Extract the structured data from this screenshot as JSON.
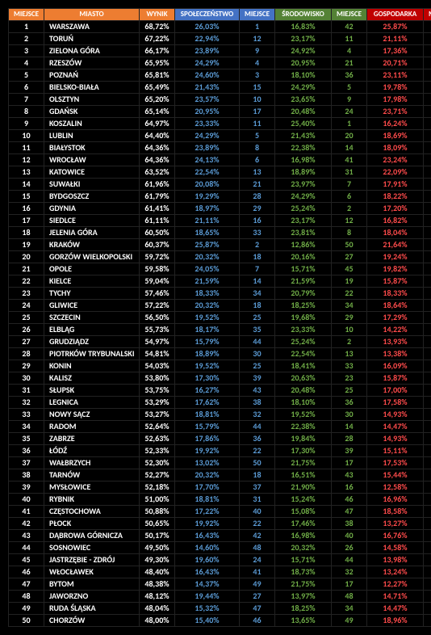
{
  "headers": {
    "rank": "MIEJSCE",
    "city": "MIASTO",
    "result": "WYNIK",
    "society": "SPOŁECZEŃSTWO",
    "soc_rank": "MIEJSCE",
    "environment": "ŚRODOWISKO",
    "env_rank": "MIEJSCE",
    "economy": "GOSPODARKA",
    "eco_rank": "MIEJSCE"
  },
  "colors": {
    "header_orange": "#ed7d31",
    "header_blue": "#4472c4",
    "header_green": "#548235",
    "header_red": "#c00000",
    "text_white": "#ffffff",
    "text_blue": "#5b9bd5",
    "text_green": "#70ad47",
    "text_red": "#ff4b4b",
    "background": "#000000"
  },
  "rows": [
    {
      "rank": "1",
      "city": "WARSZAWA",
      "result": "68,72%",
      "soc": "26,03%",
      "socr": "1",
      "env": "16,83%",
      "envr": "42",
      "eco": "25,87%",
      "ecor": "1"
    },
    {
      "rank": "2",
      "city": "TORUŃ",
      "result": "67,22%",
      "soc": "22,94%",
      "socr": "12",
      "env": "23,17%",
      "envr": "11",
      "eco": "21,11%",
      "ecor": "7"
    },
    {
      "rank": "3",
      "city": "ZIELONA GÓRA",
      "result": "66,17%",
      "soc": "23,89%",
      "socr": "9",
      "env": "24,92%",
      "envr": "4",
      "eco": "17,36%",
      "ecor": "34"
    },
    {
      "rank": "4",
      "city": "RZESZÓW",
      "result": "65,95%",
      "soc": "24,29%",
      "socr": "4",
      "env": "20,95%",
      "envr": "21",
      "eco": "20,71%",
      "ecor": "8"
    },
    {
      "rank": "5",
      "city": "POZNAŃ",
      "result": "65,81%",
      "soc": "24,60%",
      "socr": "3",
      "env": "18,10%",
      "envr": "36",
      "eco": "23,11%",
      "ecor": "4"
    },
    {
      "rank": "6",
      "city": "BIELSKO-BIAŁA",
      "result": "65,49%",
      "soc": "21,43%",
      "socr": "15",
      "env": "24,29%",
      "envr": "5",
      "eco": "19,78%",
      "ecor": "10"
    },
    {
      "rank": "7",
      "city": "OLSZTYN",
      "result": "65,20%",
      "soc": "23,57%",
      "socr": "10",
      "env": "23,65%",
      "envr": "9",
      "eco": "17,98%",
      "ecor": "20"
    },
    {
      "rank": "8",
      "city": "GDAŃSK",
      "result": "65,14%",
      "soc": "20,95%",
      "socr": "17",
      "env": "20,48%",
      "envr": "24",
      "eco": "23,71%",
      "ecor": "2"
    },
    {
      "rank": "9",
      "city": "KOSZALIN",
      "result": "64,97%",
      "soc": "23,33%",
      "socr": "11",
      "env": "25,40%",
      "envr": "1",
      "eco": "16,24%",
      "ecor": "31"
    },
    {
      "rank": "10",
      "city": "LUBLIN",
      "result": "64,40%",
      "soc": "24,29%",
      "socr": "5",
      "env": "21,43%",
      "envr": "20",
      "eco": "18,69%",
      "ecor": "13"
    },
    {
      "rank": "11",
      "city": "BIAŁYSTOK",
      "result": "64,36%",
      "soc": "23,89%",
      "socr": "8",
      "env": "22,38%",
      "envr": "14",
      "eco": "18,09%",
      "ecor": "18"
    },
    {
      "rank": "12",
      "city": "WROCŁAW",
      "result": "64,36%",
      "soc": "24,13%",
      "socr": "6",
      "env": "16,98%",
      "envr": "41",
      "eco": "23,24%",
      "ecor": "3"
    },
    {
      "rank": "13",
      "city": "KATOWICE",
      "result": "63,52%",
      "soc": "22,54%",
      "socr": "13",
      "env": "18,89%",
      "envr": "31",
      "eco": "22,09%",
      "ecor": "5"
    },
    {
      "rank": "14",
      "city": "SUWAŁKI",
      "result": "61,96%",
      "soc": "20,08%",
      "socr": "21",
      "env": "23,97%",
      "envr": "7",
      "eco": "17,91%",
      "ecor": "21"
    },
    {
      "rank": "15",
      "city": "BYDGOSZCZ",
      "result": "61,79%",
      "soc": "19,29%",
      "socr": "28",
      "env": "24,29%",
      "envr": "6",
      "eco": "18,22%",
      "ecor": "17"
    },
    {
      "rank": "16",
      "city": "GDYNIA",
      "result": "61,41%",
      "soc": "18,97%",
      "socr": "29",
      "env": "25,24%",
      "envr": "2",
      "eco": "17,20%",
      "ecor": "26"
    },
    {
      "rank": "17",
      "city": "SIEDLCE",
      "result": "61,11%",
      "soc": "21,11%",
      "socr": "16",
      "env": "23,17%",
      "envr": "12",
      "eco": "16,82%",
      "ecor": "29"
    },
    {
      "rank": "18",
      "city": "JELENIA GÓRA",
      "result": "60,50%",
      "soc": "18,65%",
      "socr": "33",
      "env": "23,81%",
      "envr": "8",
      "eco": "18,04%",
      "ecor": "19"
    },
    {
      "rank": "19",
      "city": "KRAKÓW",
      "result": "60,37%",
      "soc": "25,87%",
      "socr": "2",
      "env": "12,86%",
      "envr": "50",
      "eco": "21,64%",
      "ecor": "6"
    },
    {
      "rank": "20",
      "city": "GORZÓW WIELKOPOLSKI",
      "result": "59,72%",
      "soc": "20,32%",
      "socr": "18",
      "env": "20,16%",
      "envr": "27",
      "eco": "19,24%",
      "ecor": "11"
    },
    {
      "rank": "21",
      "city": "OPOLE",
      "result": "59,58%",
      "soc": "24,05%",
      "socr": "7",
      "env": "15,71%",
      "envr": "45",
      "eco": "19,82%",
      "ecor": "9"
    },
    {
      "rank": "22",
      "city": "KIELCE",
      "result": "59,04%",
      "soc": "21,59%",
      "socr": "14",
      "env": "21,59%",
      "envr": "19",
      "eco": "15,87%",
      "ecor": "33"
    },
    {
      "rank": "23",
      "city": "TYCHY",
      "result": "57,46%",
      "soc": "18,33%",
      "socr": "34",
      "env": "20,79%",
      "envr": "22",
      "eco": "18,33%",
      "ecor": "16"
    },
    {
      "rank": "24",
      "city": "GLIWICE",
      "result": "57,22%",
      "soc": "20,32%",
      "socr": "18",
      "env": "18,25%",
      "envr": "34",
      "eco": "18,64%",
      "ecor": "14"
    },
    {
      "rank": "25",
      "city": "SZCZECIN",
      "result": "56,50%",
      "soc": "19,52%",
      "socr": "25",
      "env": "19,68%",
      "envr": "29",
      "eco": "17,29%",
      "ecor": "25"
    },
    {
      "rank": "26",
      "city": "ELBLĄG",
      "result": "55,73%",
      "soc": "18,17%",
      "socr": "35",
      "env": "23,33%",
      "envr": "10",
      "eco": "14,22%",
      "ecor": "43"
    },
    {
      "rank": "27",
      "city": "GRUDZIĄDZ",
      "result": "54,97%",
      "soc": "15,79%",
      "socr": "44",
      "env": "25,24%",
      "envr": "2",
      "eco": "13,93%",
      "ecor": "45"
    },
    {
      "rank": "28",
      "city": "PIOTRKÓW TRYBUNALSKI",
      "result": "54,81%",
      "soc": "18,89%",
      "socr": "30",
      "env": "22,54%",
      "envr": "13",
      "eco": "13,38%",
      "ecor": "46"
    },
    {
      "rank": "29",
      "city": "KONIN",
      "result": "54,03%",
      "soc": "19,52%",
      "socr": "25",
      "env": "18,41%",
      "envr": "33",
      "eco": "16,09%",
      "ecor": "32"
    },
    {
      "rank": "30",
      "city": "KALISZ",
      "result": "53,80%",
      "soc": "17,30%",
      "socr": "39",
      "env": "20,63%",
      "envr": "23",
      "eco": "15,87%",
      "ecor": "33"
    },
    {
      "rank": "31",
      "city": "SŁUPSK",
      "result": "53,75%",
      "soc": "16,27%",
      "socr": "43",
      "env": "20,48%",
      "envr": "25",
      "eco": "17,00%",
      "ecor": "27"
    },
    {
      "rank": "32",
      "city": "LEGNICA",
      "result": "53,29%",
      "soc": "17,62%",
      "socr": "38",
      "env": "18,10%",
      "envr": "36",
      "eco": "17,58%",
      "ecor": "22"
    },
    {
      "rank": "33",
      "city": "NOWY SĄCZ",
      "result": "53,27%",
      "soc": "18,81%",
      "socr": "32",
      "env": "19,52%",
      "envr": "30",
      "eco": "14,93%",
      "ecor": "37"
    },
    {
      "rank": "34",
      "city": "RADOM",
      "result": "52,64%",
      "soc": "15,79%",
      "socr": "44",
      "env": "22,38%",
      "envr": "14",
      "eco": "14,47%",
      "ecor": "41"
    },
    {
      "rank": "35",
      "city": "ZABRZE",
      "result": "52,63%",
      "soc": "17,86%",
      "socr": "36",
      "env": "19,84%",
      "envr": "28",
      "eco": "14,93%",
      "ecor": "37"
    },
    {
      "rank": "36",
      "city": "ŁÓDŹ",
      "result": "52,33%",
      "soc": "19,92%",
      "socr": "22",
      "env": "17,30%",
      "envr": "39",
      "eco": "15,11%",
      "ecor": "36"
    },
    {
      "rank": "37",
      "city": "WAŁBRZYCH",
      "result": "52,30%",
      "soc": "13,02%",
      "socr": "50",
      "env": "21,75%",
      "envr": "17",
      "eco": "17,53%",
      "ecor": "23"
    },
    {
      "rank": "38",
      "city": "TARNÓW",
      "result": "52,27%",
      "soc": "20,32%",
      "socr": "18",
      "env": "16,51%",
      "envr": "43",
      "eco": "15,44%",
      "ecor": "35"
    },
    {
      "rank": "39",
      "city": "MYSŁOWICE",
      "result": "52,18%",
      "soc": "17,70%",
      "socr": "37",
      "env": "21,90%",
      "envr": "16",
      "eco": "12,58%",
      "ecor": "49"
    },
    {
      "rank": "40",
      "city": "RYBNIK",
      "result": "51,00%",
      "soc": "18,81%",
      "socr": "31",
      "env": "15,24%",
      "envr": "46",
      "eco": "16,96%",
      "ecor": "28"
    },
    {
      "rank": "41",
      "city": "CZĘSTOCHOWA",
      "result": "50,88%",
      "soc": "17,22%",
      "socr": "40",
      "env": "15,08%",
      "envr": "47",
      "eco": "18,58%",
      "ecor": "15"
    },
    {
      "rank": "42",
      "city": "PŁOCK",
      "result": "50,65%",
      "soc": "19,92%",
      "socr": "22",
      "env": "17,46%",
      "envr": "38",
      "eco": "13,27%",
      "ecor": "47"
    },
    {
      "rank": "43",
      "city": "DĄBROWA GÓRNICZA",
      "result": "50,17%",
      "soc": "16,43%",
      "socr": "42",
      "env": "16,98%",
      "envr": "40",
      "eco": "16,76%",
      "ecor": "30"
    },
    {
      "rank": "44",
      "city": "SOSNOWIEC",
      "result": "49,50%",
      "soc": "14,60%",
      "socr": "48",
      "env": "20,32%",
      "envr": "26",
      "eco": "14,58%",
      "ecor": "40"
    },
    {
      "rank": "45",
      "city": "JASTRZĘBIE - ZDRÓJ",
      "result": "49,30%",
      "soc": "19,60%",
      "socr": "24",
      "env": "15,71%",
      "envr": "44",
      "eco": "13,98%",
      "ecor": "44"
    },
    {
      "rank": "46",
      "city": "WŁOCŁAWEK",
      "result": "48,40%",
      "soc": "16,43%",
      "socr": "41",
      "env": "18,73%",
      "envr": "32",
      "eco": "13,24%",
      "ecor": "48"
    },
    {
      "rank": "47",
      "city": "BYTOM",
      "result": "48,38%",
      "soc": "14,37%",
      "socr": "49",
      "env": "21,75%",
      "envr": "17",
      "eco": "12,27%",
      "ecor": "50"
    },
    {
      "rank": "48",
      "city": "JAWORZNO",
      "result": "48,12%",
      "soc": "19,44%",
      "socr": "27",
      "env": "13,97%",
      "envr": "48",
      "eco": "14,71%",
      "ecor": "39"
    },
    {
      "rank": "49",
      "city": "RUDA ŚLĄSKA",
      "result": "48,04%",
      "soc": "15,32%",
      "socr": "47",
      "env": "18,25%",
      "envr": "34",
      "eco": "14,47%",
      "ecor": "41"
    },
    {
      "rank": "50",
      "city": "CHORZÓW",
      "result": "48,00%",
      "soc": "15,40%",
      "socr": "46",
      "env": "13,65%",
      "envr": "49",
      "eco": "18,96%",
      "ecor": "12"
    }
  ]
}
